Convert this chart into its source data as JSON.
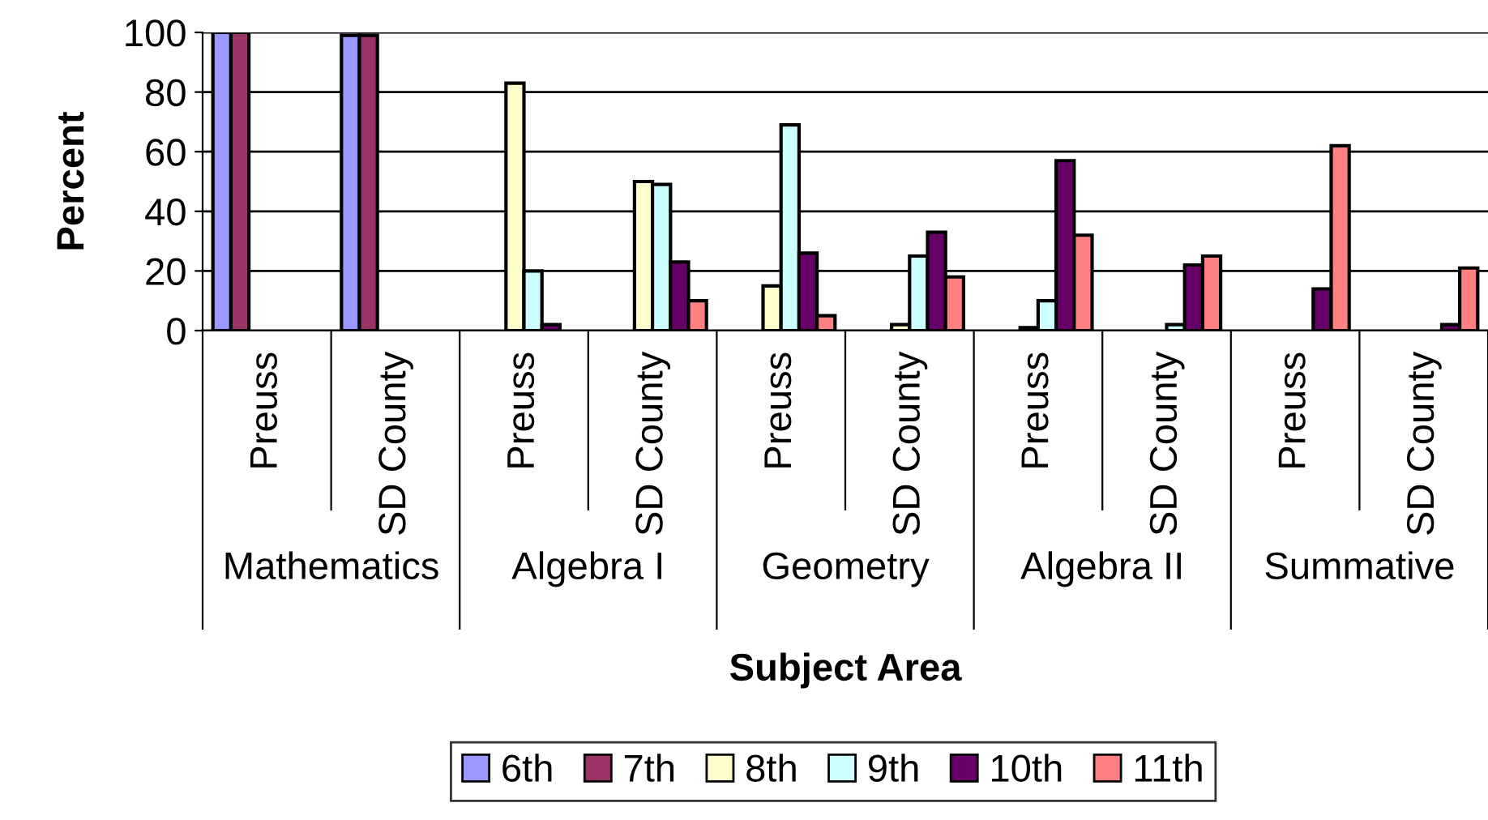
{
  "chart_data": {
    "type": "bar",
    "xlabel": "Subject Area",
    "ylabel": "Percent",
    "categories": [
      "Preuss",
      "SD County",
      "Preuss",
      "SD County",
      "Preuss",
      "SD County",
      "Preuss",
      "SD County",
      "Preuss",
      "SD County"
    ],
    "annotations": [
      "Mathematics",
      "Algebra I",
      "Geometry",
      "Algebra II",
      "Summative"
    ],
    "series": [
      {
        "name": "6th",
        "color": "#9999ff",
        "values": [
          100,
          99,
          null,
          null,
          null,
          null,
          null,
          null,
          null,
          null
        ]
      },
      {
        "name": "7th",
        "color": "#993366",
        "values": [
          100,
          99,
          null,
          null,
          null,
          null,
          null,
          null,
          null,
          null
        ]
      },
      {
        "name": "8th",
        "color": "#ffffcc",
        "values": [
          null,
          null,
          83,
          50,
          15,
          2,
          1,
          null,
          null,
          null
        ]
      },
      {
        "name": "9th",
        "color": "#ccffff",
        "values": [
          null,
          null,
          20,
          49,
          69,
          25,
          10,
          2,
          null,
          null
        ]
      },
      {
        "name": "10th",
        "color": "#660066",
        "values": [
          null,
          null,
          2,
          23,
          26,
          33,
          57,
          22,
          14,
          2
        ]
      },
      {
        "name": "11th",
        "color": "#ff8080",
        "values": [
          null,
          null,
          null,
          10,
          5,
          18,
          32,
          25,
          62,
          21
        ]
      }
    ],
    "ylim": [
      0,
      100
    ],
    "yticks": [
      0,
      20,
      40,
      60,
      80,
      100
    ],
    "grid": "y",
    "legend": "bottom"
  }
}
